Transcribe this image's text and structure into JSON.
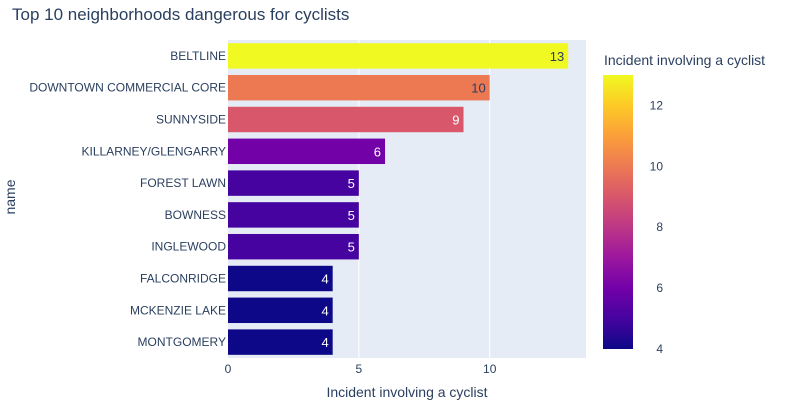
{
  "chart_data": {
    "type": "bar",
    "orientation": "horizontal",
    "title": "Top 10 neighborhoods dangerous for cyclists",
    "xlabel": "Incident involving a cyclist",
    "ylabel": "name",
    "xlim": [
      0,
      13.68
    ],
    "x_ticks": [
      0,
      5,
      10
    ],
    "categories": [
      "BELTLINE",
      "DOWNTOWN COMMERCIAL CORE",
      "SUNNYSIDE",
      "KILLARNEY/GLENGARRY",
      "FOREST LAWN",
      "BOWNESS",
      "INGLEWOOD",
      "FALCONRIDGE",
      "MCKENZIE LAKE",
      "MONTGOMERY"
    ],
    "values": [
      13,
      10,
      9,
      6,
      5,
      5,
      5,
      4,
      4,
      4
    ],
    "grid": true,
    "colorbar": {
      "title": "Incident involving a cyclist",
      "min": 4,
      "max": 13,
      "ticks": [
        4,
        6,
        8,
        10,
        12
      ],
      "colorscale": [
        "#0d0887",
        "#46039f",
        "#7201a8",
        "#9c179e",
        "#bd3786",
        "#d8576b",
        "#ed7953",
        "#fb9f3a",
        "#fdca26",
        "#f0f921"
      ]
    }
  }
}
